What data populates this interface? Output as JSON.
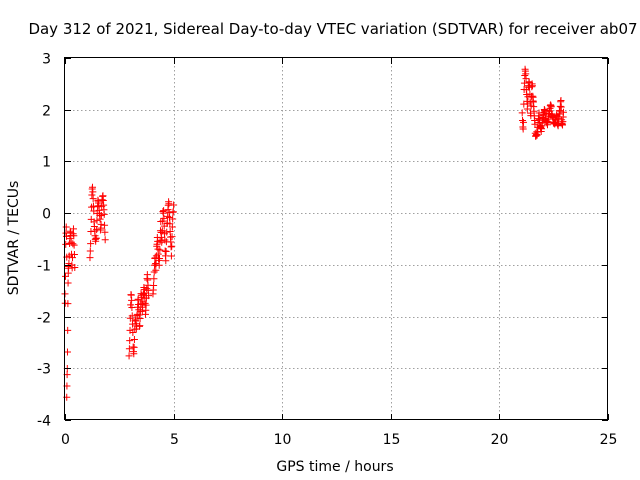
{
  "chart_data": {
    "type": "scatter",
    "title": "Day 312 of 2021, Sidereal Day-to-day VTEC variation (SDTVAR) for receiver ab07",
    "xlabel": "GPS time / hours",
    "ylabel": "SDTVAR / TECUs",
    "xlim": [
      0,
      25
    ],
    "ylim": [
      -4,
      3
    ],
    "xticks": [
      0,
      5,
      10,
      15,
      20,
      25
    ],
    "yticks": [
      -4,
      -3,
      -2,
      -1,
      0,
      1,
      2,
      3
    ],
    "xtick_labels": [
      "0",
      "5",
      "10",
      "15",
      "20",
      "25"
    ],
    "ytick_labels": [
      "-4",
      "-3",
      "-2",
      "-1",
      "0",
      "1",
      "2",
      "3"
    ],
    "grid": true,
    "legend": "none",
    "marker": "plus",
    "series": [
      {
        "name": "ab07",
        "color": "#ff0000",
        "segments": [
          {
            "x_start": 0.0,
            "x_end": 0.08,
            "y": [
              -1.5,
              -1.7,
              -1.2,
              -0.6,
              -0.4,
              -0.3,
              -0.5,
              -0.8
            ]
          },
          {
            "x_start": 0.08,
            "x_end": 0.15,
            "y": [
              -3.5,
              -3.3,
              -3.1,
              -3.0,
              -2.7,
              -2.3,
              -1.8,
              -1.3,
              -1.0
            ]
          },
          {
            "x_start": 0.15,
            "x_end": 0.45,
            "y": [
              -1.1,
              -1.0,
              -0.9,
              -0.6,
              -0.5,
              -0.3,
              -0.4,
              -0.6,
              -1.0,
              -1.1,
              -0.7,
              -0.4,
              -0.3,
              -0.5,
              -0.8,
              -1.0
            ]
          },
          {
            "x_start": 1.15,
            "x_end": 1.85,
            "y": [
              -0.8,
              -0.6,
              -0.2,
              0.2,
              0.6,
              0.4,
              0.1,
              -0.1,
              -0.3,
              -0.5,
              -0.6,
              -0.4,
              -0.1,
              0.1,
              0.3,
              0.2,
              0.0,
              -0.1,
              -0.3,
              -0.2,
              0.1,
              0.3,
              0.4,
              0.2,
              0.0,
              -0.2,
              -0.5
            ]
          },
          {
            "x_start": 2.95,
            "x_end": 3.85,
            "y": [
              -2.7,
              -2.5,
              -2.2,
              -1.8,
              -1.5,
              -1.7,
              -2.0,
              -2.3,
              -2.6,
              -2.7,
              -2.5,
              -2.2,
              -2.0,
              -2.1,
              -2.3,
              -2.0,
              -1.8,
              -1.6,
              -1.8,
              -2.0,
              -2.2,
              -2.0,
              -1.8,
              -1.5,
              -1.6,
              -1.9,
              -1.8,
              -1.6,
              -1.4,
              -1.5,
              -1.7,
              -1.9,
              -1.8,
              -1.6,
              -1.3,
              -1.2,
              -1.4,
              -1.6
            ]
          },
          {
            "x_start": 4.05,
            "x_end": 5.0,
            "y": [
              -1.5,
              -1.4,
              -1.2,
              -1.0,
              -0.8,
              -1.1,
              -0.9,
              -0.6,
              -0.4,
              -0.7,
              -0.9,
              -1.0,
              -0.8,
              -0.5,
              -0.2,
              -0.4,
              -0.6,
              -0.3,
              0.0,
              0.1,
              -0.2,
              -0.5,
              -0.7,
              -0.9,
              -0.6,
              -0.3,
              -0.1,
              0.1,
              0.2,
              0.1,
              -0.1,
              -0.4,
              -0.6,
              -0.8,
              -0.5,
              -0.2,
              0.0,
              0.2
            ]
          },
          {
            "x_start": 21.05,
            "x_end": 21.55,
            "y": [
              2.0,
              1.7,
              1.6,
              2.2,
              2.6,
              2.8,
              2.7,
              2.5,
              2.3,
              2.0,
              2.2,
              2.5,
              2.6,
              2.4,
              2.1,
              1.9,
              2.2,
              2.5,
              2.4,
              2.2
            ]
          },
          {
            "x_start": 21.55,
            "x_end": 22.95,
            "y": [
              2.3,
              2.0,
              1.7,
              1.5,
              1.5,
              1.6,
              1.8,
              1.9,
              1.7,
              1.6,
              1.7,
              1.8,
              1.9,
              2.0,
              1.9,
              1.8,
              1.7,
              1.8,
              1.9,
              2.0,
              2.1,
              2.0,
              1.9,
              1.8,
              1.8,
              1.7,
              1.8,
              1.9,
              1.8,
              1.7,
              1.9,
              2.0,
              2.2,
              1.8,
              1.7,
              1.9
            ]
          }
        ]
      }
    ]
  }
}
